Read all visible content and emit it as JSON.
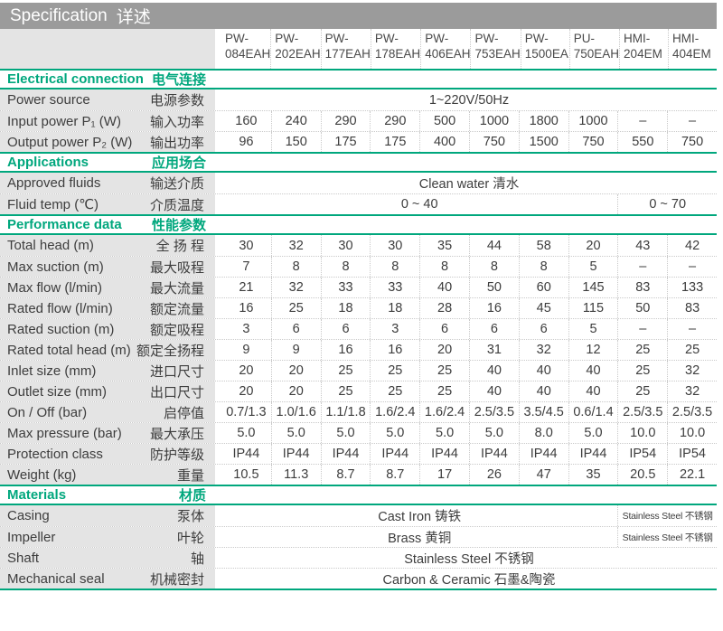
{
  "colors": {
    "accent": "#00a77d",
    "titlebar": "#9b9b9b",
    "lblbg": "#e4e4e4",
    "sep": "#c9c9c9",
    "text": "#3d3d3d"
  },
  "title": {
    "en": "Specification",
    "zh": "详述"
  },
  "columns": [
    {
      "l1": "PW-",
      "l2": "084EAH"
    },
    {
      "l1": "PW-",
      "l2": "202EAH"
    },
    {
      "l1": "PW-",
      "l2": "177EAH"
    },
    {
      "l1": "PW-",
      "l2": "178EAH"
    },
    {
      "l1": "PW-",
      "l2": "406EAH"
    },
    {
      "l1": "PW-",
      "l2": "753EAH"
    },
    {
      "l1": "PW-",
      "l2": "1500EA"
    },
    {
      "l1": "PU-",
      "l2": "750EAH"
    },
    {
      "l1": "HMI-",
      "l2": "204EM"
    },
    {
      "l1": "HMI-",
      "l2": "404EM"
    }
  ],
  "sections": [
    {
      "title": {
        "en": "Electrical connection",
        "zh": "电气连接"
      },
      "rows": [
        {
          "label": {
            "en": "Power source",
            "zh": "电源参数"
          },
          "span_all": "1~220V/50Hz"
        },
        {
          "label": {
            "en": "Input power P₁ (W)",
            "zh": "输入功率"
          },
          "values": [
            "160",
            "240",
            "290",
            "290",
            "500",
            "1000",
            "1800",
            "1000",
            "–",
            "–"
          ]
        },
        {
          "label": {
            "en": "Output power P₂ (W)",
            "zh": "输出功率"
          },
          "values": [
            "96",
            "150",
            "175",
            "175",
            "400",
            "750",
            "1500",
            "750",
            "550",
            "750"
          ]
        }
      ]
    },
    {
      "title": {
        "en": "Applications",
        "zh": "应用场合"
      },
      "rows": [
        {
          "label": {
            "en": "Approved fluids",
            "zh": "输送介质"
          },
          "span_all": "Clean water 清水"
        },
        {
          "label": {
            "en": "Fluid temp (℃)",
            "zh": "介质温度"
          },
          "span8": "0 ~ 40",
          "span2": "0 ~ 70"
        }
      ]
    },
    {
      "title": {
        "en": "Performance data",
        "zh": "性能参数"
      },
      "rows": [
        {
          "label": {
            "en": "Total head (m)",
            "zh": "全 扬 程"
          },
          "values": [
            "30",
            "32",
            "30",
            "30",
            "35",
            "44",
            "58",
            "20",
            "43",
            "42"
          ]
        },
        {
          "label": {
            "en": "Max suction (m)",
            "zh": "最大吸程"
          },
          "values": [
            "7",
            "8",
            "8",
            "8",
            "8",
            "8",
            "8",
            "5",
            "–",
            "–"
          ]
        },
        {
          "label": {
            "en": "Max flow (l/min)",
            "zh": "最大流量"
          },
          "values": [
            "21",
            "32",
            "33",
            "33",
            "40",
            "50",
            "60",
            "145",
            "83",
            "133"
          ]
        },
        {
          "label": {
            "en": "Rated flow (l/min)",
            "zh": "额定流量"
          },
          "values": [
            "16",
            "25",
            "18",
            "18",
            "28",
            "16",
            "45",
            "115",
            "50",
            "83"
          ]
        },
        {
          "label": {
            "en": "Rated suction (m)",
            "zh": "额定吸程"
          },
          "values": [
            "3",
            "6",
            "6",
            "3",
            "6",
            "6",
            "6",
            "5",
            "–",
            "–"
          ]
        },
        {
          "label": {
            "en": "Rated total head (m)",
            "zh": "额定全扬程"
          },
          "values": [
            "9",
            "9",
            "16",
            "16",
            "20",
            "31",
            "32",
            "12",
            "25",
            "25"
          ]
        },
        {
          "label": {
            "en": "Inlet size (mm)",
            "zh": "进口尺寸"
          },
          "values": [
            "20",
            "20",
            "25",
            "25",
            "25",
            "40",
            "40",
            "40",
            "25",
            "32"
          ]
        },
        {
          "label": {
            "en": "Outlet size (mm)",
            "zh": "出口尺寸"
          },
          "values": [
            "20",
            "20",
            "25",
            "25",
            "25",
            "40",
            "40",
            "40",
            "25",
            "32"
          ]
        },
        {
          "label": {
            "en": "On / Off (bar)",
            "zh": "启停值"
          },
          "values": [
            "0.7/1.3",
            "1.0/1.6",
            "1.1/1.8",
            "1.6/2.4",
            "1.6/2.4",
            "2.5/3.5",
            "3.5/4.5",
            "0.6/1.4",
            "2.5/3.5",
            "2.5/3.5"
          ]
        },
        {
          "label": {
            "en": "Max pressure (bar)",
            "zh": "最大承压"
          },
          "values": [
            "5.0",
            "5.0",
            "5.0",
            "5.0",
            "5.0",
            "5.0",
            "8.0",
            "5.0",
            "10.0",
            "10.0"
          ]
        },
        {
          "label": {
            "en": "Protection class",
            "zh": "防护等级"
          },
          "values": [
            "IP44",
            "IP44",
            "IP44",
            "IP44",
            "IP44",
            "IP44",
            "IP44",
            "IP44",
            "IP54",
            "IP54"
          ]
        },
        {
          "label": {
            "en": "Weight  (kg)",
            "zh": "重量"
          },
          "values": [
            "10.5",
            "11.3",
            "8.7",
            "8.7",
            "17",
            "26",
            "47",
            "35",
            "20.5",
            "22.1"
          ]
        }
      ]
    },
    {
      "title": {
        "en": "Materials",
        "zh": "材质"
      },
      "rows": [
        {
          "label": {
            "en": "Casing",
            "zh": "泵体"
          },
          "span8": "Cast Iron 铸铁",
          "span2": "Stainless Steel 不锈钢"
        },
        {
          "label": {
            "en": "Impeller",
            "zh": "叶轮"
          },
          "span8": "Brass 黄铜",
          "span2": "Stainless Steel 不锈钢"
        },
        {
          "label": {
            "en": "Shaft",
            "zh": "轴"
          },
          "span_all": "Stainless Steel 不锈钢"
        },
        {
          "label": {
            "en": "Mechanical seal",
            "zh": "机械密封"
          },
          "span_all": "Carbon & Ceramic 石墨&陶瓷"
        }
      ]
    }
  ]
}
